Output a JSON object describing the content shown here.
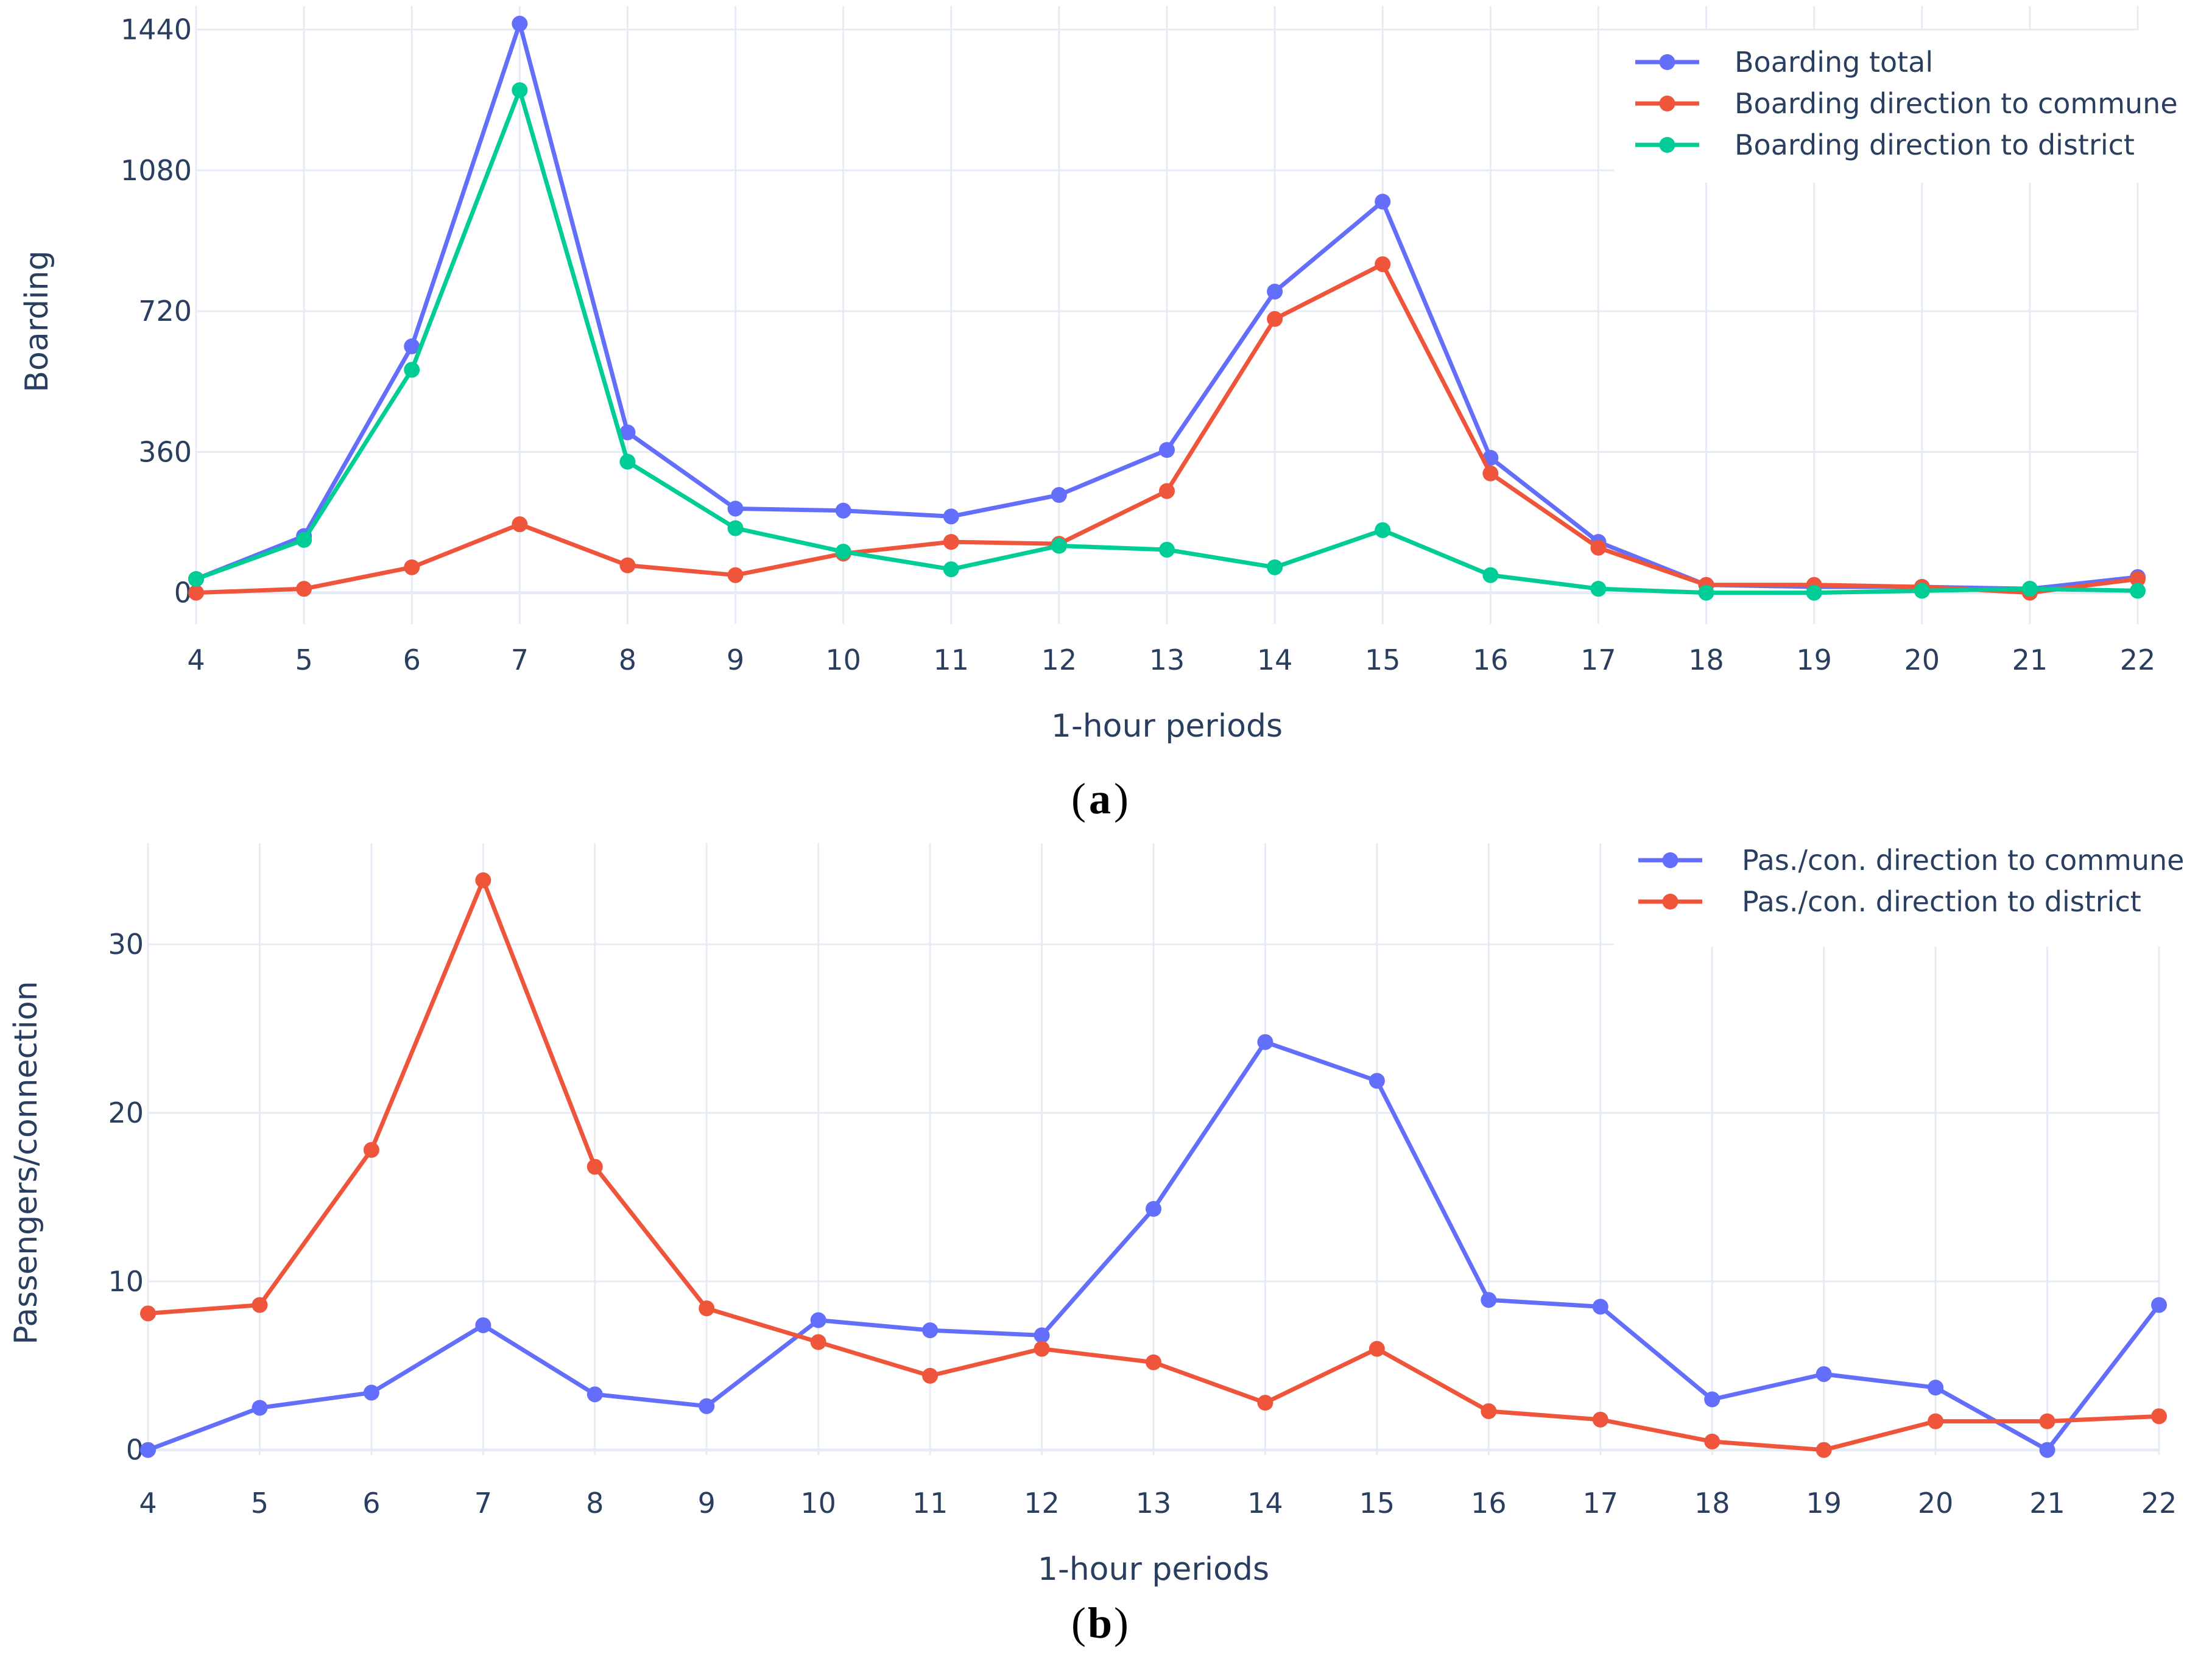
{
  "chart_data": [
    {
      "type": "line",
      "panel": "a",
      "caption": "a",
      "x": [
        4,
        5,
        6,
        7,
        8,
        9,
        10,
        11,
        12,
        13,
        14,
        15,
        16,
        17,
        18,
        19,
        20,
        21,
        22
      ],
      "xlabel": "1-hour periods",
      "ylabel": "Boarding",
      "yticks": [
        0,
        360,
        720,
        1080,
        1440
      ],
      "ylim": [
        -80,
        1500
      ],
      "xlim": [
        4,
        22
      ],
      "legend_position": "top-right",
      "series": [
        {
          "name": "Boarding total",
          "color": "#636efa",
          "values": [
            35,
            145,
            630,
            1455,
            410,
            215,
            210,
            195,
            250,
            365,
            770,
            1000,
            345,
            130,
            20,
            15,
            15,
            10,
            40
          ]
        },
        {
          "name": "Boarding direction to commune",
          "color": "#ef553b",
          "values": [
            0,
            10,
            65,
            175,
            70,
            45,
            100,
            130,
            125,
            260,
            700,
            840,
            305,
            115,
            20,
            20,
            15,
            0,
            35
          ]
        },
        {
          "name": "Boarding direction to district",
          "color": "#00cc96",
          "values": [
            35,
            135,
            570,
            1285,
            335,
            165,
            105,
            60,
            120,
            110,
            65,
            160,
            45,
            10,
            0,
            0,
            5,
            10,
            5
          ]
        }
      ]
    },
    {
      "type": "line",
      "panel": "b",
      "caption": "b",
      "x": [
        4,
        5,
        6,
        7,
        8,
        9,
        10,
        11,
        12,
        13,
        14,
        15,
        16,
        17,
        18,
        19,
        20,
        21,
        22
      ],
      "xlabel": "1-hour periods",
      "ylabel": "Passengers/connection",
      "yticks": [
        0,
        10,
        20,
        30
      ],
      "ylim": [
        -0.3,
        36
      ],
      "xlim": [
        4,
        22
      ],
      "legend_position": "top-right",
      "series": [
        {
          "name": "Pas./con. direction to commune",
          "color": "#636efa",
          "values": [
            0,
            2.5,
            3.4,
            7.4,
            3.3,
            2.6,
            7.7,
            7.1,
            6.8,
            14.3,
            24.2,
            21.9,
            8.9,
            8.5,
            3.0,
            4.5,
            3.7,
            0,
            8.6
          ]
        },
        {
          "name": "Pas./con. direction to district",
          "color": "#ef553b",
          "values": [
            8.1,
            8.6,
            17.8,
            33.8,
            16.8,
            8.4,
            6.4,
            4.4,
            6.0,
            5.2,
            2.8,
            6.0,
            2.3,
            1.8,
            0.5,
            0,
            1.7,
            1.7,
            2.0
          ]
        }
      ]
    }
  ]
}
